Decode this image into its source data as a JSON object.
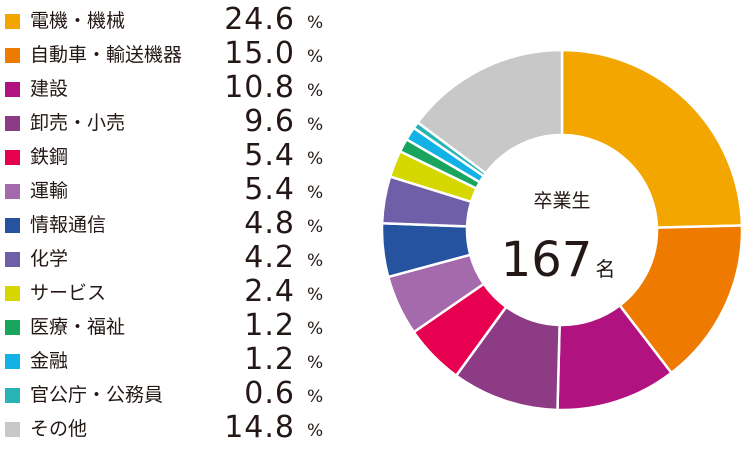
{
  "chart_data": {
    "type": "pie",
    "style": "donut",
    "center_label": "卒業生",
    "center_value": "167",
    "center_unit": "名",
    "unit": "%",
    "slices": [
      {
        "label": "電機・機械",
        "value": "24.6",
        "color": "#f3a600"
      },
      {
        "label": "自動車・輸送機器",
        "value": "15.0",
        "color": "#ee7a00"
      },
      {
        "label": "建設",
        "value": "10.8",
        "color": "#b0127f"
      },
      {
        "label": "卸売・小売",
        "value": "9.6",
        "color": "#8e3b86"
      },
      {
        "label": "鉄鋼",
        "value": "5.4",
        "color": "#e6004f"
      },
      {
        "label": "運輸",
        "value": "5.4",
        "color": "#a56aac"
      },
      {
        "label": "情報通信",
        "value": "4.8",
        "color": "#2553a0"
      },
      {
        "label": "化学",
        "value": "4.2",
        "color": "#6f5ea8"
      },
      {
        "label": "サービス",
        "value": "2.4",
        "color": "#d6d700"
      },
      {
        "label": "医療・福祉",
        "value": "1.2",
        "color": "#1aa55f"
      },
      {
        "label": "金融",
        "value": "1.2",
        "color": "#12b2e6"
      },
      {
        "label": "官公庁・公務員",
        "value": "0.6",
        "color": "#28b4b4"
      },
      {
        "label": "その他",
        "value": "14.8",
        "color": "#c8c8c8"
      }
    ]
  }
}
